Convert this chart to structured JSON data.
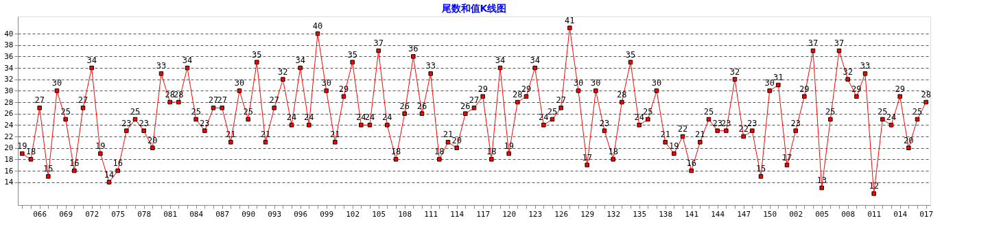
{
  "chart_data": {
    "type": "line",
    "title": "尾数和值K线图",
    "categories": [
      null,
      null,
      "066",
      null,
      null,
      "069",
      null,
      null,
      "072",
      null,
      null,
      "075",
      null,
      null,
      "078",
      null,
      null,
      "081",
      null,
      null,
      "084",
      null,
      null,
      "087",
      null,
      null,
      "090",
      null,
      null,
      "093",
      null,
      null,
      "096",
      null,
      null,
      "099",
      null,
      null,
      "102",
      null,
      null,
      "105",
      null,
      null,
      "108",
      null,
      null,
      "111",
      null,
      null,
      "114",
      null,
      null,
      "117",
      null,
      null,
      "120",
      null,
      null,
      "123",
      null,
      null,
      "126",
      null,
      null,
      "129",
      null,
      null,
      "132",
      null,
      null,
      "135",
      null,
      null,
      "138",
      null,
      null,
      "141",
      null,
      null,
      "144",
      null,
      null,
      "147",
      null,
      null,
      "150",
      null,
      null,
      "002",
      null,
      null,
      "005",
      null,
      null,
      "008",
      null,
      null,
      "011",
      null,
      null,
      "014",
      null,
      null,
      "017"
    ],
    "series": [
      {
        "color": "#ff0000",
        "values": [
          19,
          18,
          27,
          15,
          30,
          25,
          16,
          27,
          34,
          19,
          14,
          16,
          23,
          25,
          23,
          20,
          33,
          28,
          28,
          34,
          25,
          23,
          27,
          27,
          21,
          30,
          25,
          35,
          21,
          27,
          32,
          24,
          34,
          24,
          40,
          30,
          21,
          29,
          35,
          24,
          24,
          37,
          24,
          18,
          26,
          36,
          26,
          33,
          18,
          21,
          20,
          26,
          27,
          29,
          18,
          34,
          19,
          28,
          29,
          34,
          24,
          25,
          27,
          41,
          30,
          17,
          30,
          23,
          18,
          28,
          35,
          24,
          25,
          30,
          21,
          19,
          22,
          16,
          21,
          25,
          23,
          23,
          32,
          22,
          23,
          15,
          30,
          31,
          17,
          23,
          29,
          37,
          13,
          25,
          37,
          32,
          29,
          33,
          12,
          25,
          24,
          29,
          20,
          25,
          28
        ]
      }
    ],
    "ylim": [
      10,
      43
    ],
    "yticks": [
      14,
      16,
      18,
      20,
      22,
      24,
      26,
      28,
      30,
      32,
      34,
      36,
      38,
      40
    ],
    "grid": "y",
    "marker": "square",
    "line_style": "solid",
    "data_labels": true,
    "legend": false
  }
}
